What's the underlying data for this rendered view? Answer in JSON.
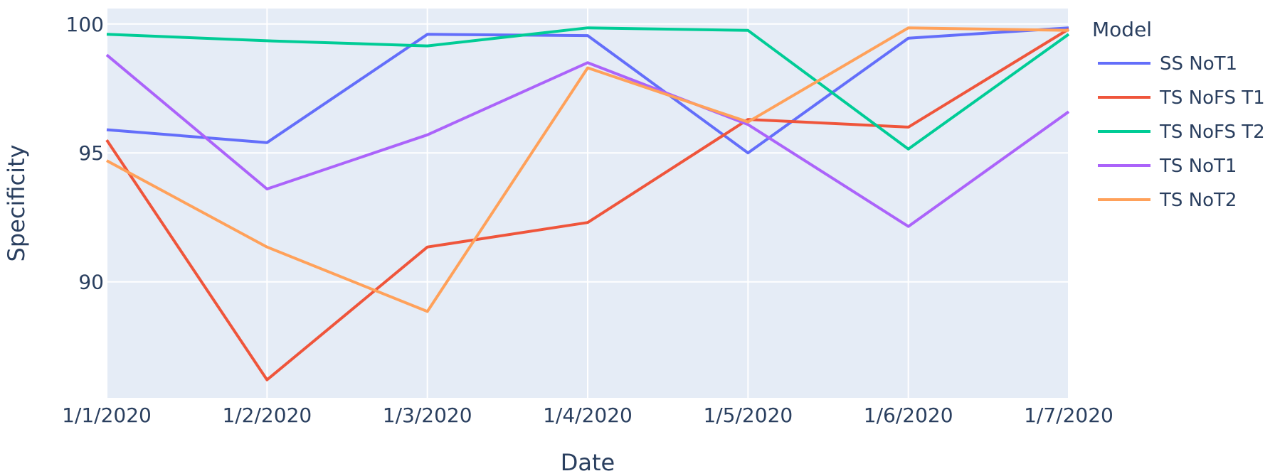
{
  "chart_data": {
    "type": "line",
    "x": [
      "1/1/2020",
      "1/2/2020",
      "1/3/2020",
      "1/4/2020",
      "1/5/2020",
      "1/6/2020",
      "1/7/2020"
    ],
    "xlabel": "Date",
    "ylabel": "Specificity",
    "ylim": [
      85.5,
      100.6
    ],
    "yticks": [
      90,
      95,
      100
    ],
    "grid": true,
    "legend_title": "Model",
    "legend_position": "right",
    "plot_background": "#e5ecf6",
    "series": [
      {
        "name": "SS NoT1",
        "color": "#636efa",
        "values": [
          95.9,
          95.4,
          99.6,
          99.55,
          95.0,
          99.45,
          99.85
        ]
      },
      {
        "name": "TS NoFS T1",
        "color": "#ef553b",
        "values": [
          95.5,
          86.2,
          91.35,
          92.3,
          96.3,
          96.0,
          99.8
        ]
      },
      {
        "name": "TS NoFS T2",
        "color": "#00cc96",
        "values": [
          99.6,
          99.35,
          99.15,
          99.85,
          99.75,
          95.15,
          99.6
        ]
      },
      {
        "name": "TS NoT1",
        "color": "#ab63fa",
        "values": [
          98.8,
          93.6,
          95.7,
          98.5,
          96.1,
          92.15,
          96.6
        ]
      },
      {
        "name": "TS NoT2",
        "color": "#ffa15a",
        "values": [
          94.7,
          91.35,
          88.85,
          98.3,
          96.2,
          99.85,
          99.75
        ]
      }
    ]
  }
}
